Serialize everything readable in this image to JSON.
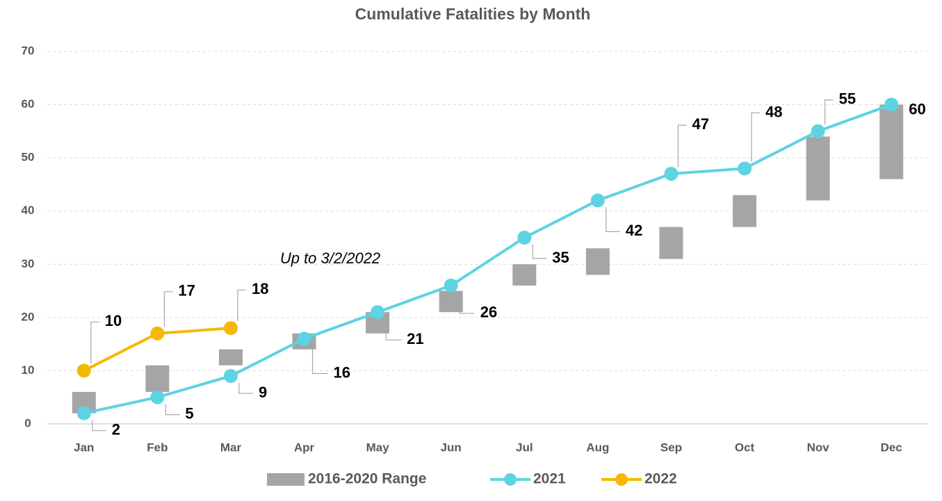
{
  "chart_data": {
    "type": "line",
    "title": "Cumulative Fatalities by Month",
    "categories": [
      "Jan",
      "Feb",
      "Mar",
      "Apr",
      "May",
      "Jun",
      "Jul",
      "Aug",
      "Sep",
      "Oct",
      "Nov",
      "Dec"
    ],
    "ylim": [
      0,
      70
    ],
    "yticks": [
      0,
      10,
      20,
      30,
      40,
      50,
      60,
      70
    ],
    "grid": true,
    "range": {
      "name": "2016-2020 Range",
      "color": "#a5a5a5",
      "low": [
        2,
        6,
        11,
        14,
        17,
        21,
        26,
        28,
        31,
        37,
        42,
        46
      ],
      "high": [
        6,
        11,
        14,
        17,
        21,
        25,
        30,
        33,
        37,
        43,
        54,
        60
      ]
    },
    "series": [
      {
        "name": "2021",
        "color": "#5dd3e3",
        "values": [
          2,
          5,
          9,
          16,
          21,
          26,
          35,
          42,
          47,
          48,
          55,
          60
        ]
      },
      {
        "name": "2022",
        "color": "#f5b800",
        "values": [
          10,
          17,
          18,
          null,
          null,
          null,
          null,
          null,
          null,
          null,
          null,
          null
        ]
      }
    ],
    "annotation": "Up to 3/2/2022",
    "legend": "bottom"
  }
}
